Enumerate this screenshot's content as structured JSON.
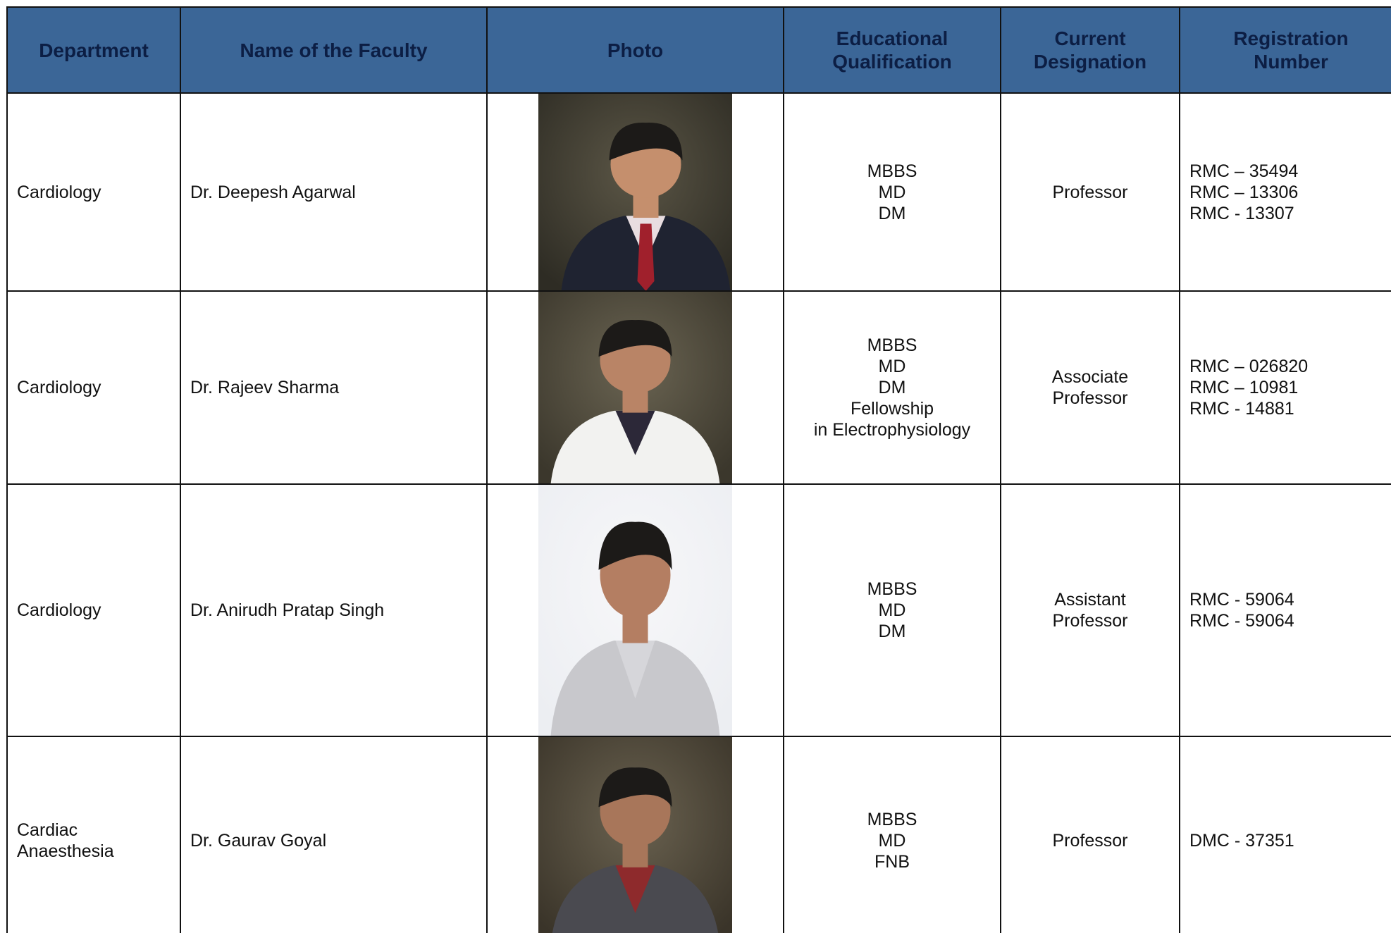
{
  "table": {
    "headers": [
      [
        "Department"
      ],
      [
        "Name of the Faculty"
      ],
      [
        "Photo"
      ],
      [
        "Educational",
        "Qualification"
      ],
      [
        "Current",
        "Designation"
      ],
      [
        "Registration",
        "Number"
      ]
    ],
    "rows": [
      {
        "department": [
          "Cardiology"
        ],
        "name": "Dr. Deepesh Agarwal",
        "qualification": [
          "MBBS",
          "MD",
          "DM"
        ],
        "designation": [
          "Professor"
        ],
        "registration": [
          "RMC – 35494",
          "RMC – 13306",
          "RMC - 13307"
        ]
      },
      {
        "department": [
          "Cardiology"
        ],
        "name": "Dr. Rajeev Sharma",
        "qualification": [
          "MBBS",
          "MD",
          "DM",
          "Fellowship",
          "in Electrophysiology"
        ],
        "designation": [
          "Associate",
          "Professor"
        ],
        "registration": [
          "RMC – 026820",
          "RMC – 10981",
          "RMC - 14881"
        ]
      },
      {
        "department": [
          "Cardiology"
        ],
        "name": "Dr. Anirudh Pratap Singh",
        "qualification": [
          "MBBS",
          "MD",
          "DM"
        ],
        "designation": [
          "Assistant",
          "Professor"
        ],
        "registration": [
          "RMC - 59064",
          "RMC - 59064"
        ]
      },
      {
        "department": [
          "Cardiac",
          "Anaesthesia"
        ],
        "name": "Dr. Gaurav Goyal",
        "qualification": [
          "MBBS",
          "MD",
          "FNB"
        ],
        "designation": [
          "Professor"
        ],
        "registration": [
          "DMC - 37351"
        ]
      }
    ]
  }
}
